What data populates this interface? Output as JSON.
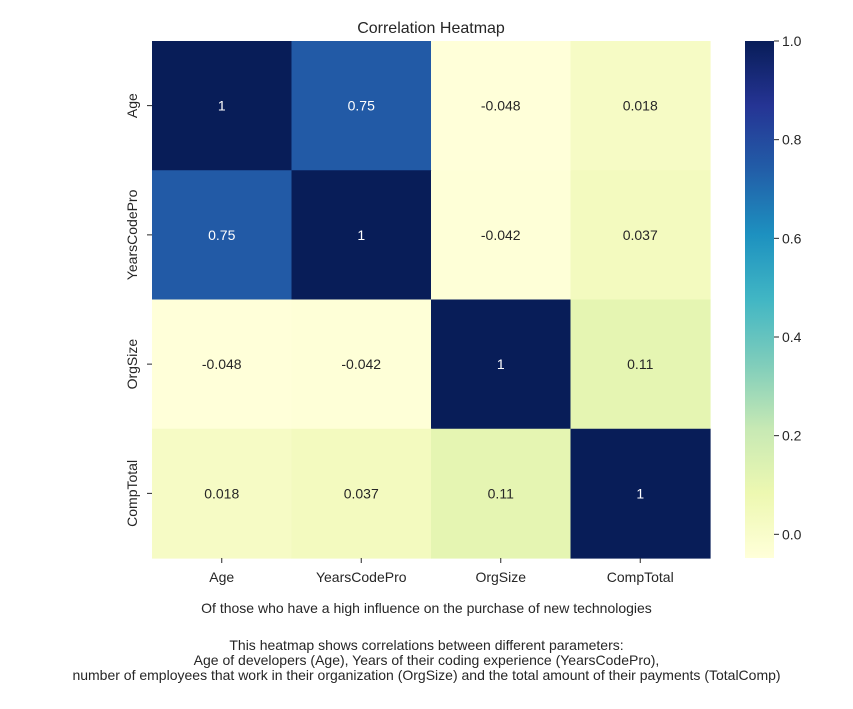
{
  "chart_data": {
    "type": "heatmap",
    "title": "Correlation Heatmap",
    "xlabel": "Of those who have a high influence on the purchase of new technologies",
    "ylabel": "",
    "rows": [
      "Age",
      "YearsCodePro",
      "OrgSize",
      "CompTotal"
    ],
    "columns": [
      "Age",
      "YearsCodePro",
      "OrgSize",
      "CompTotal"
    ],
    "values": [
      [
        1,
        0.75,
        -0.048,
        0.018
      ],
      [
        0.75,
        1,
        -0.042,
        0.037
      ],
      [
        -0.048,
        -0.042,
        1,
        0.11
      ],
      [
        0.018,
        0.037,
        0.11,
        1
      ]
    ],
    "value_labels": [
      [
        "1",
        "0.75",
        "-0.048",
        "0.018"
      ],
      [
        "0.75",
        "1",
        "-0.042",
        "0.037"
      ],
      [
        "-0.048",
        "-0.042",
        "1",
        "0.11"
      ],
      [
        "0.018",
        "0.037",
        "0.11",
        "1"
      ]
    ],
    "colormap": "YlGnBu",
    "colorbar": {
      "vmin": -0.048,
      "vmax": 1.0,
      "ticks": [
        0.0,
        0.2,
        0.4,
        0.6,
        0.8,
        1.0
      ],
      "tick_labels": [
        "0.0",
        "0.2",
        "0.4",
        "0.6",
        "0.8",
        "1.0"
      ],
      "placement": "right"
    },
    "grid": false,
    "annotation_colors": {
      "light": "#ffffff",
      "dark": "#262626"
    }
  },
  "description": {
    "lines": [
      "This heatmap shows correlations between different parameters:",
      "Age of developers (Age), Years of their coding experience (YearsCodePro),",
      "number of employees that work in their organization (OrgSize) and the total amount of their payments (TotalComp)"
    ]
  }
}
